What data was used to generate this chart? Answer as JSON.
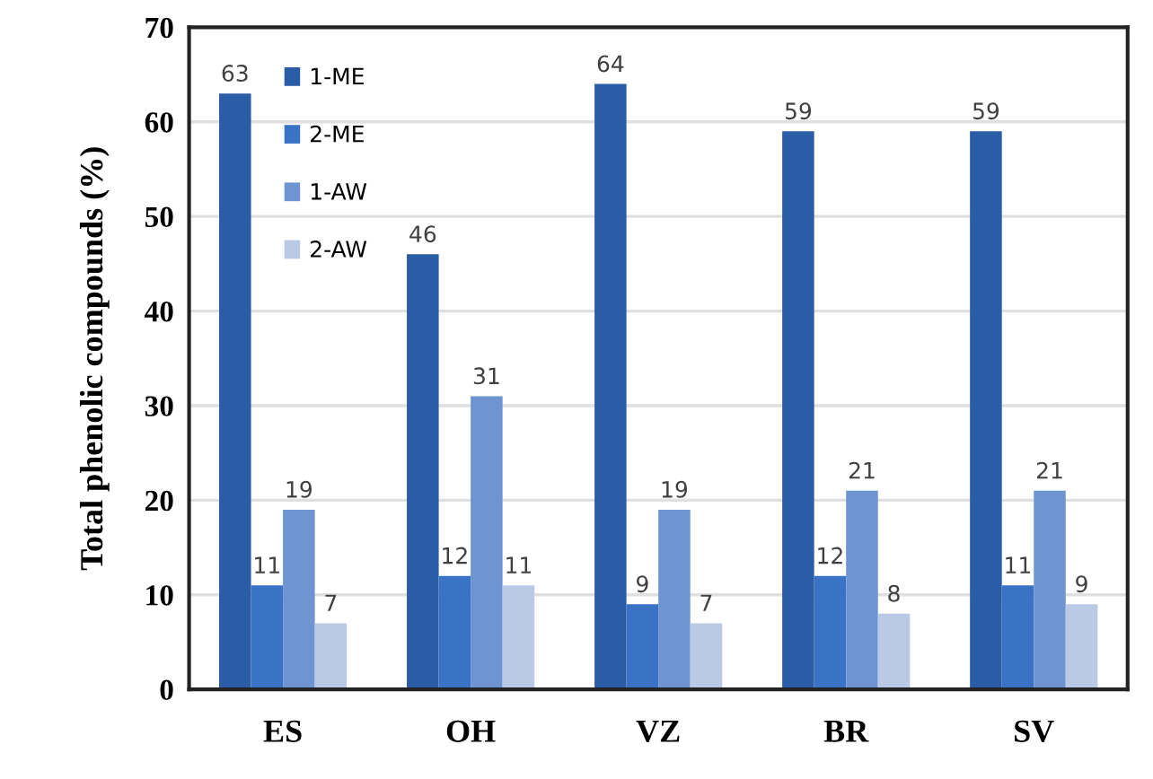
{
  "chart_data": {
    "type": "bar",
    "ylabel": "Total phenolic compounds (%)",
    "categories": [
      "ES",
      "OH",
      "VZ",
      "BR",
      "SV"
    ],
    "series": [
      {
        "name": "1-ME",
        "color": "#2b5ca6",
        "values": [
          63,
          46,
          64,
          59,
          59
        ]
      },
      {
        "name": "2-ME",
        "color": "#3a73c6",
        "values": [
          11,
          12,
          9,
          12,
          11
        ]
      },
      {
        "name": "1-AW",
        "color": "#6e95d2",
        "values": [
          19,
          31,
          19,
          21,
          21
        ]
      },
      {
        "name": "2-AW",
        "color": "#b9c9e6",
        "values": [
          7,
          11,
          7,
          8,
          9
        ]
      }
    ],
    "ylim": [
      0,
      70
    ],
    "yticks": [
      0,
      10,
      20,
      30,
      40,
      50,
      60,
      70
    ],
    "grid": "y",
    "legend": "top left",
    "data_labels": true
  }
}
